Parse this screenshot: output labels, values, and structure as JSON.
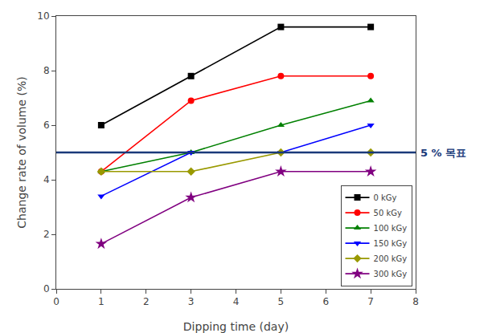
{
  "chart_data": {
    "type": "line",
    "xlabel": "Dipping time (day)",
    "ylabel": "Change rate of volume (%)",
    "x": [
      1,
      3,
      5,
      7
    ],
    "series": [
      {
        "name": "0 kGy",
        "color": "black",
        "marker": "square",
        "line_style": "solid",
        "values": [
          6.0,
          7.8,
          9.6,
          9.6
        ]
      },
      {
        "name": "50 kGy",
        "color": "red",
        "marker": "circle",
        "line_style": "solid",
        "values": [
          4.3,
          6.9,
          7.8,
          7.8
        ]
      },
      {
        "name": "100 kGy",
        "color": "green",
        "marker": "triangle-up",
        "line_style": "solid",
        "values": [
          4.3,
          5.0,
          6.0,
          6.9
        ]
      },
      {
        "name": "150 kGy",
        "color": "blue",
        "marker": "triangle-down",
        "line_style": "solid",
        "values": [
          3.4,
          5.0,
          5.0,
          6.0
        ]
      },
      {
        "name": "200 kGy",
        "color": "#999900",
        "marker": "diamond",
        "line_style": "solid",
        "values": [
          4.3,
          4.3,
          5.0,
          5.0
        ]
      },
      {
        "name": "300 kGy",
        "color": "purple",
        "marker": "star",
        "line_style": "solid",
        "values": [
          1.65,
          3.35,
          4.3,
          4.3
        ]
      }
    ],
    "hlines": [
      {
        "y": 5.0,
        "label": "5 % 목표",
        "color": "#1a3a7a"
      }
    ],
    "xlim": [
      0,
      8
    ],
    "ylim": [
      0,
      10
    ],
    "xticks": [
      0,
      1,
      2,
      3,
      4,
      5,
      6,
      7,
      8
    ],
    "yticks": [
      0,
      2,
      4,
      6,
      8,
      10
    ],
    "grid": false,
    "legend": "lower right"
  }
}
